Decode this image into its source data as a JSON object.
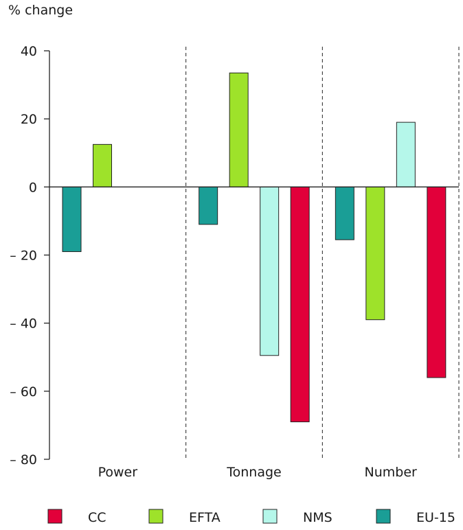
{
  "chart_data": {
    "type": "bar",
    "title": "",
    "ylabel": "% change",
    "xlabel": "",
    "categories": [
      "Power",
      "Tonnage",
      "Number"
    ],
    "ylim": [
      -80,
      40
    ],
    "yticks": [
      40,
      20,
      0,
      -20,
      -40,
      -60,
      -80
    ],
    "ytick_labels": [
      "40",
      "20",
      "0",
      "– 20",
      "– 40",
      "– 60",
      "– 80"
    ],
    "grid": false,
    "category_separators": "dashed",
    "legend_position": "bottom",
    "series": [
      {
        "name": "EU-15",
        "color": "#1a9e96",
        "values": [
          -19,
          -11,
          -15.5
        ]
      },
      {
        "name": "EFTA",
        "color": "#9ee22a",
        "values": [
          12.5,
          33.5,
          -39
        ]
      },
      {
        "name": "NMS",
        "color": "#b5f7ea",
        "values": [
          null,
          -49.5,
          19
        ]
      },
      {
        "name": "CC",
        "color": "#e2003a",
        "values": [
          null,
          -69,
          -56
        ]
      }
    ],
    "legend_order": [
      "CC",
      "EFTA",
      "NMS",
      "EU-15"
    ]
  }
}
